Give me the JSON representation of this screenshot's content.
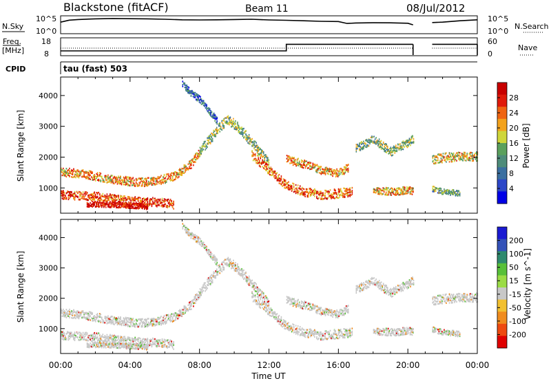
{
  "header": {
    "station": "Blackstone (fitACF)",
    "beam": "Beam 11",
    "date": "08/Jul/2012"
  },
  "top_panels": {
    "nsky_label": "N.Sky",
    "nsky_ticks": [
      "10^5",
      "10^0"
    ],
    "nsearch_label": "N.Search",
    "nsearch_ticks": [
      "10^5",
      "10^0"
    ],
    "freq_label": "Freq.",
    "freq_unit": "[MHz]",
    "freq_ticks": [
      "18",
      "8"
    ],
    "nave_label": "Nave",
    "nave_ticks": [
      "60",
      "0"
    ],
    "cpid_label": "CPID",
    "cpid_value": "tau (fast) 503"
  },
  "colors": {
    "power_scale": [
      "#0000e6",
      "#2c47c8",
      "#3a6fa0",
      "#4e8c7a",
      "#5aa05c",
      "#cfd63a",
      "#f3a21c",
      "#ef6412",
      "#e01a0a",
      "#c80000"
    ],
    "velocity_scale": [
      "#e00000",
      "#ee4a10",
      "#f08c1e",
      "#f2c030",
      "#c8c8c8",
      "#9bdc46",
      "#58c039",
      "#2e8a6e",
      "#3452b8",
      "#1a1ad2"
    ],
    "ground_scatter": "#c8c8c8"
  },
  "chart_data": [
    {
      "type": "line",
      "title": "N.Sky / N.Search",
      "x_unit": "UT hours",
      "xlim": [
        0,
        24
      ],
      "y_scale": "log",
      "ylim": [
        1,
        100000
      ],
      "series": [
        {
          "name": "N.Sky",
          "x": [
            0.0,
            0.5,
            1.0,
            2.0,
            3.0,
            4.0,
            5.0,
            6.0,
            7.0,
            8.0,
            9.0,
            10.0,
            11.0,
            12.0,
            13.0,
            14.0,
            15.0,
            16.0,
            16.5,
            17.0,
            18.0,
            19.0,
            20.0,
            20.3
          ],
          "y": [
            2000,
            8000,
            12000,
            20000,
            25000,
            22000,
            20000,
            15000,
            10000,
            9000,
            10000,
            12000,
            15000,
            9000,
            7000,
            5000,
            3500,
            3000,
            800,
            1100,
            1300,
            1200,
            900,
            300
          ]
        },
        {
          "name": "N.Sky",
          "x": [
            21.4,
            22.0,
            23.0,
            24.0
          ],
          "y": [
            1500,
            2000,
            5000,
            10000
          ]
        }
      ]
    },
    {
      "type": "line",
      "title": "Freq. / Nave",
      "x_unit": "UT hours",
      "xlim": [
        0,
        24
      ],
      "ylabel": "Freq. [MHz]",
      "ylim": [
        8,
        18
      ],
      "series": [
        {
          "name": "Freq.",
          "x": [
            0.0,
            13.0,
            13.0,
            20.3,
            21.4,
            24.0
          ],
          "y": [
            10.5,
            10.5,
            14.5,
            14.5,
            14.5,
            14.5
          ]
        },
        {
          "name": "Nave",
          "x": [
            0.0,
            20.3,
            21.4,
            24.0
          ],
          "y": [
            25,
            25,
            25,
            25
          ]
        }
      ]
    },
    {
      "type": "heatmap",
      "title": "Power",
      "xlabel": "Time UT",
      "ylabel": "Slant Range [km]",
      "xlim": [
        0,
        24
      ],
      "ylim": [
        180,
        4600
      ],
      "x_ticks": [
        "00:00",
        "04:00",
        "08:00",
        "12:00",
        "16:00",
        "20:00",
        "00:00"
      ],
      "y_ticks": [
        1000,
        2000,
        3000,
        4000
      ],
      "colorbar_label": "Power [dB]",
      "colorbar_ticks": [
        "4",
        "8",
        "12",
        "16",
        "20",
        "24",
        "28"
      ],
      "colorbar_range": [
        0,
        30
      ],
      "scatter_bands": [
        {
          "x": [
            0.0,
            1.5,
            3.0,
            4.5,
            5.5,
            6.5,
            7.5,
            8.0
          ],
          "y": [
            1550,
            1450,
            1300,
            1200,
            1250,
            1400,
            1800,
            2200
          ],
          "width": 140,
          "power": 20
        },
        {
          "x": [
            8.0,
            9.0,
            9.6,
            10.2,
            11.0,
            12.0
          ],
          "y": [
            2200,
            2900,
            3250,
            3000,
            2500,
            1800
          ],
          "width": 160,
          "power": 14
        },
        {
          "x": [
            11.0,
            12.0,
            13.0,
            14.0,
            15.0,
            16.0,
            16.8
          ],
          "y": [
            2100,
            1600,
            1100,
            900,
            800,
            850,
            900
          ],
          "width": 150,
          "power": 22
        },
        {
          "x": [
            13.0,
            14.0,
            15.0,
            16.0,
            16.6
          ],
          "y": [
            1950,
            1800,
            1600,
            1500,
            1700
          ],
          "width": 130,
          "power": 20
        },
        {
          "x": [
            0.0,
            2.0,
            4.0,
            6.0,
            6.5
          ],
          "y": [
            800,
            750,
            600,
            550,
            480
          ],
          "width": 140,
          "power": 24
        },
        {
          "x": [
            1.5,
            3.0,
            4.0,
            5.0
          ],
          "y": [
            500,
            480,
            450,
            420
          ],
          "width": 90,
          "power": 28
        },
        {
          "x": [
            17.0,
            18.0,
            19.0,
            20.0,
            20.3
          ],
          "y": [
            2300,
            2600,
            2200,
            2500,
            2600
          ],
          "width": 140,
          "power": 14
        },
        {
          "x": [
            18.0,
            19.0,
            20.0,
            20.3
          ],
          "y": [
            950,
            900,
            950,
            900
          ],
          "width": 120,
          "power": 20
        },
        {
          "x": [
            21.4,
            22.0,
            23.0,
            24.0
          ],
          "y": [
            1950,
            2000,
            2050,
            2050
          ],
          "width": 150,
          "power": 18
        },
        {
          "x": [
            21.4,
            22.0,
            23.0
          ],
          "y": [
            1000,
            900,
            850
          ],
          "width": 90,
          "power": 12
        },
        {
          "x": [
            7.0,
            7.5,
            8.0,
            9.0
          ],
          "y": [
            4400,
            4100,
            3900,
            3200
          ],
          "width": 110,
          "power": 8
        }
      ]
    },
    {
      "type": "heatmap",
      "title": "Velocity",
      "xlabel": "Time UT",
      "ylabel": "Slant Range [km]",
      "xlim": [
        0,
        24
      ],
      "ylim": [
        180,
        4600
      ],
      "x_ticks": [
        "00:00",
        "04:00",
        "08:00",
        "12:00",
        "16:00",
        "20:00",
        "00:00"
      ],
      "y_ticks": [
        1000,
        2000,
        3000,
        4000
      ],
      "colorbar_label": "Velocity [m s^-1]",
      "colorbar_ticks": [
        "200",
        "100",
        "50",
        "15",
        "-15",
        "-50",
        "-100",
        "-200"
      ],
      "colorbar_range": [
        -250,
        250
      ]
    }
  ]
}
